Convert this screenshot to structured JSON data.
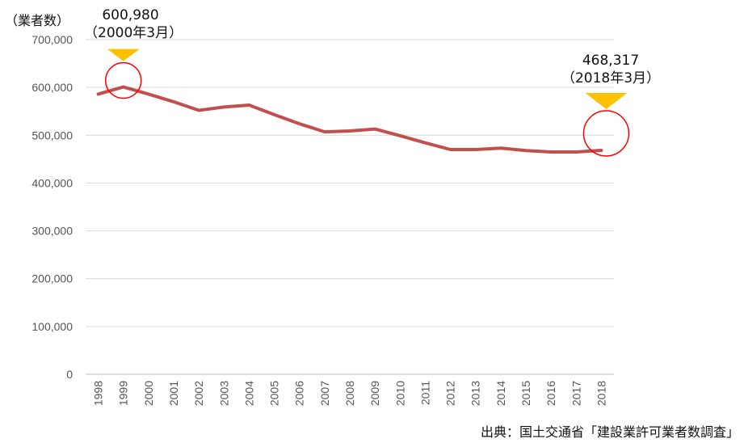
{
  "chart_data": {
    "type": "line",
    "ylabel": "（業者数）",
    "categories": [
      "1998",
      "1999",
      "2000",
      "2001",
      "2002",
      "2003",
      "2004",
      "2005",
      "2006",
      "2007",
      "2008",
      "2009",
      "2010",
      "2011",
      "2012",
      "2013",
      "2014",
      "2015",
      "2016",
      "2017",
      "2018"
    ],
    "series": [
      {
        "values": [
          586000,
          600980,
          586000,
          570000,
          552000,
          559000,
          563000,
          543000,
          524000,
          507000,
          509000,
          513000,
          499000,
          484000,
          470000,
          470000,
          473000,
          468000,
          465000,
          465000,
          468317
        ]
      }
    ],
    "ylim": [
      0,
      700000
    ],
    "yticks": [
      0,
      100000,
      200000,
      300000,
      400000,
      500000,
      600000,
      700000
    ],
    "ytick_labels": [
      "0",
      "100,000",
      "200,000",
      "300,000",
      "400,000",
      "500,000",
      "600,000",
      "700,000"
    ],
    "grid": true,
    "line_color": "#c0504d",
    "grid_color": "#d9d9d9",
    "annotations": [
      {
        "value_label": "600,980",
        "date_label": "（2000年3月）",
        "category": "1999",
        "marker_color": "#ffc000",
        "circle_color": "#ff0000"
      },
      {
        "value_label": "468,317",
        "date_label": "（2018年3月）",
        "category": "2018",
        "marker_color": "#ffc000",
        "circle_color": "#ff0000"
      }
    ]
  },
  "source": "出典：国土交通省「建設業許可業者数調査」"
}
